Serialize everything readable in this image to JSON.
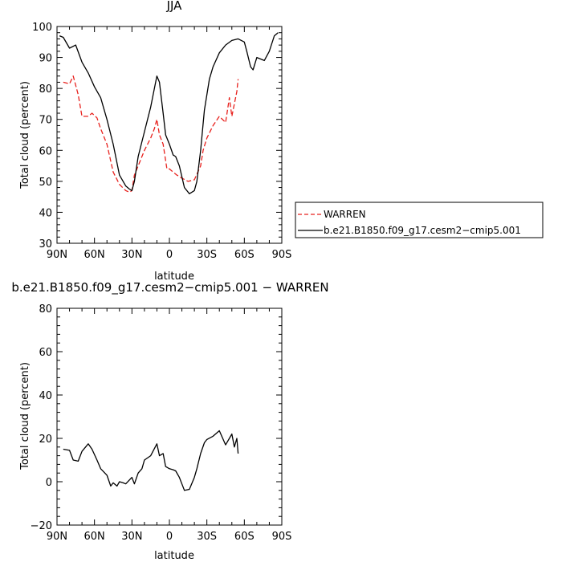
{
  "chart_data": [
    {
      "type": "line",
      "title": "JJA",
      "xlabel": "latitude",
      "ylabel": "Total cloud (percent)",
      "xlim": [
        90,
        -90
      ],
      "ylim": [
        30,
        100
      ],
      "x_ticks": [
        "90N",
        "60N",
        "30N",
        "0",
        "30S",
        "60S",
        "90S"
      ],
      "x_tick_values": [
        90,
        60,
        30,
        0,
        -30,
        -60,
        -90
      ],
      "y_ticks": [
        "30",
        "40",
        "50",
        "60",
        "70",
        "80",
        "90",
        "100"
      ],
      "y_tick_values": [
        30,
        40,
        50,
        60,
        70,
        80,
        90,
        100
      ],
      "legend_position": "right",
      "series": [
        {
          "name": "WARREN",
          "color": "#e8211d",
          "dash": "dashed",
          "x": [
            85,
            80,
            77,
            73,
            70,
            65,
            62,
            58,
            55,
            50,
            45,
            40,
            35,
            32,
            30,
            28,
            25,
            20,
            15,
            12,
            10,
            8,
            5,
            2,
            0,
            -3,
            -6,
            -10,
            -15,
            -20,
            -25,
            -27,
            -30,
            -35,
            -40,
            -45,
            -48,
            -50,
            -52,
            -54,
            -55
          ],
          "y": [
            82,
            81.5,
            84,
            78,
            71,
            71,
            72,
            70.5,
            67,
            62,
            53,
            49,
            47,
            46.5,
            47,
            52,
            55,
            60,
            64,
            67,
            70,
            65,
            62,
            54,
            54,
            53,
            52,
            51,
            50,
            50.5,
            55,
            60,
            64,
            68,
            71,
            69,
            77,
            71,
            75,
            79,
            83
          ]
        },
        {
          "name": "b.e21.B1850.f09_g17.cesm2−cmip5.001",
          "color": "#000000",
          "dash": "solid",
          "x": [
            88,
            85,
            80,
            75,
            70,
            65,
            60,
            55,
            50,
            45,
            40,
            35,
            32,
            30,
            28,
            25,
            20,
            15,
            12,
            10,
            8,
            5,
            3,
            0,
            -3,
            -5,
            -8,
            -12,
            -16,
            -20,
            -22,
            -25,
            -28,
            -32,
            -35,
            -40,
            -45,
            -50,
            -55,
            -60,
            -62,
            -65,
            -67,
            -70,
            -73,
            -76,
            -80,
            -84,
            -87
          ],
          "y": [
            97,
            96.5,
            93,
            94,
            88.5,
            85,
            80.5,
            77,
            70,
            62,
            52,
            48.5,
            47.5,
            47,
            50,
            58,
            66,
            74,
            80,
            84,
            82,
            72,
            65,
            62,
            58.5,
            58,
            55,
            48,
            46,
            47,
            50,
            60,
            73,
            83,
            87,
            91.5,
            94,
            95.5,
            96,
            95,
            92,
            87,
            86,
            90,
            89.5,
            89,
            92,
            97,
            98
          ]
        }
      ]
    },
    {
      "type": "line",
      "title": "b.e21.B1850.f09_g17.cesm2−cmip5.001 − WARREN",
      "xlabel": "latitude",
      "ylabel": "Total cloud (percent)",
      "xlim": [
        90,
        -90
      ],
      "ylim": [
        -20,
        80
      ],
      "x_ticks": [
        "90N",
        "60N",
        "30N",
        "0",
        "30S",
        "60S",
        "90S"
      ],
      "x_tick_values": [
        90,
        60,
        30,
        0,
        -30,
        -60,
        -90
      ],
      "y_ticks": [
        "−20",
        "0",
        "20",
        "40",
        "60",
        "80"
      ],
      "y_tick_values": [
        -20,
        0,
        20,
        40,
        60,
        80
      ],
      "series": [
        {
          "color": "#000000",
          "dash": "solid",
          "x": [
            85,
            80,
            77,
            73,
            70,
            65,
            62,
            58,
            55,
            50,
            47,
            45,
            42,
            40,
            37,
            35,
            30,
            28,
            25,
            22,
            20,
            15,
            10,
            8,
            5,
            3,
            0,
            -3,
            -5,
            -8,
            -12,
            -16,
            -20,
            -22,
            -25,
            -28,
            -30,
            -35,
            -40,
            -45,
            -48,
            -50,
            -52,
            -54,
            -55
          ],
          "y": [
            15,
            14.5,
            10,
            9.5,
            14,
            17.5,
            15,
            10,
            6,
            3,
            -2,
            -0.5,
            -2,
            0,
            -0.5,
            -1,
            2,
            -1,
            4,
            6,
            10,
            12,
            17.5,
            12,
            13,
            7,
            6,
            5.5,
            5,
            2,
            -4,
            -3.5,
            2,
            6,
            13,
            18,
            19.5,
            21,
            23.5,
            17,
            20,
            22,
            16,
            20,
            13
          ]
        }
      ]
    }
  ]
}
